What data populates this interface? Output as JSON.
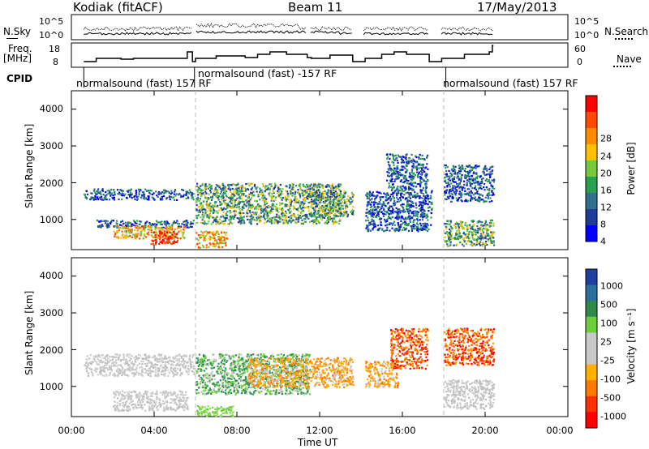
{
  "header": {
    "station": "Kodiak (fitACF)",
    "beam": "Beam 11",
    "date": "17/May/2013"
  },
  "nsky": {
    "label": "N.Sky",
    "ticks": [
      "10^5",
      "10^0"
    ]
  },
  "nsearch": {
    "label": "N.Search",
    "ticks": [
      "10^5",
      "10^0"
    ]
  },
  "freq": {
    "label_line1": "Freq.",
    "label_line2": "[MHz]",
    "ticks": [
      "18",
      "8"
    ]
  },
  "nave": {
    "label": "Nave",
    "ticks": [
      "60",
      "0"
    ]
  },
  "cpid": {
    "label": "CPID",
    "segments": [
      {
        "text": "normalsound (fast) 157 RF",
        "start": 0.6,
        "end": 5.95
      },
      {
        "text": "normalsound (fast) -157 RF",
        "start": 5.95,
        "end": 18.1
      },
      {
        "text": "normalsound (fast) 157 RF",
        "start": 18.1,
        "end": 24
      }
    ]
  },
  "x_axis": {
    "label": "Time UT",
    "ticks": [
      "00:00",
      "04:00",
      "08:00",
      "12:00",
      "16:00",
      "20:00",
      "00:00"
    ]
  },
  "power_panel": {
    "ylabel": "Slant Range [km]",
    "yticks": [
      "4000",
      "3000",
      "2000",
      "1000"
    ],
    "cb_label": "Power [dB]",
    "cb_ticks": [
      "28",
      "24",
      "20",
      "16",
      "12",
      "8",
      "4"
    ],
    "cb_colors": [
      "#ff0000",
      "#ff4a00",
      "#ff8c00",
      "#ffc000",
      "#78c83c",
      "#28a050",
      "#2f6f8f",
      "#1e3c9a",
      "#0000ff"
    ]
  },
  "velocity_panel": {
    "ylabel": "Slant Range [km]",
    "yticks": [
      "4000",
      "3000",
      "2000",
      "1000"
    ],
    "cb_label": "Velocity [m s⁻¹]",
    "cb_ticks": [
      "1000",
      "500",
      "100",
      "25",
      "-25",
      "-100",
      "-500",
      "-1000"
    ],
    "cb_colors": [
      "#1f3fa0",
      "#2b6f9e",
      "#2e8a4a",
      "#6ccf3c",
      "#c8c8c8",
      "#c8c8c8",
      "#ffb000",
      "#ff7a00",
      "#ff3000",
      "#ff0000"
    ]
  },
  "chart_data": {
    "type": "heatmap",
    "x_range": [
      "00:00",
      "24:00"
    ],
    "y_range": [
      180,
      4500
    ],
    "gray_markers_hours": [
      6.0,
      18.0
    ],
    "power_regions": [
      {
        "t0": 0.6,
        "t1": 5.9,
        "r0": 1550,
        "r1": 1850,
        "level": "low"
      },
      {
        "t0": 1.2,
        "t1": 5.9,
        "r0": 800,
        "r1": 1000,
        "level": "low"
      },
      {
        "t0": 2.0,
        "t1": 5.5,
        "r0": 500,
        "r1": 850,
        "level": "high"
      },
      {
        "t0": 3.8,
        "t1": 5.1,
        "r0": 350,
        "r1": 700,
        "level": "max"
      },
      {
        "t0": 6.0,
        "t1": 13.0,
        "r0": 900,
        "r1": 2000,
        "level": "mid"
      },
      {
        "t0": 6.0,
        "t1": 7.5,
        "r0": 250,
        "r1": 700,
        "level": "high"
      },
      {
        "t0": 11.5,
        "t1": 13.6,
        "r0": 1100,
        "r1": 1800,
        "level": "mid"
      },
      {
        "t0": 14.2,
        "t1": 17.4,
        "r0": 700,
        "r1": 1800,
        "level": "low"
      },
      {
        "t0": 15.2,
        "t1": 17.2,
        "r0": 1800,
        "r1": 2800,
        "level": "low"
      },
      {
        "t0": 18.0,
        "t1": 20.4,
        "r0": 1500,
        "r1": 2500,
        "level": "low"
      },
      {
        "t0": 18.0,
        "t1": 20.4,
        "r0": 300,
        "r1": 1000,
        "level": "mid"
      }
    ],
    "velocity_regions": [
      {
        "t0": 0.6,
        "t1": 5.9,
        "r0": 1300,
        "r1": 1900,
        "level": "gray"
      },
      {
        "t0": 2.0,
        "t1": 5.6,
        "r0": 350,
        "r1": 900,
        "level": "gray"
      },
      {
        "t0": 6.0,
        "t1": 11.5,
        "r0": 800,
        "r1": 1900,
        "level": "green"
      },
      {
        "t0": 8.5,
        "t1": 13.6,
        "r0": 1000,
        "r1": 1800,
        "level": "orange"
      },
      {
        "t0": 14.2,
        "t1": 15.8,
        "r0": 1000,
        "r1": 1700,
        "level": "orange"
      },
      {
        "t0": 15.4,
        "t1": 17.2,
        "r0": 1500,
        "r1": 2600,
        "level": "redorange"
      },
      {
        "t0": 18.0,
        "t1": 20.4,
        "r0": 1600,
        "r1": 2600,
        "level": "redorange"
      },
      {
        "t0": 18.0,
        "t1": 20.4,
        "r0": 400,
        "r1": 1200,
        "level": "gray"
      },
      {
        "t0": 6.0,
        "t1": 7.8,
        "r0": 200,
        "r1": 500,
        "level": "lightgreen"
      }
    ]
  }
}
